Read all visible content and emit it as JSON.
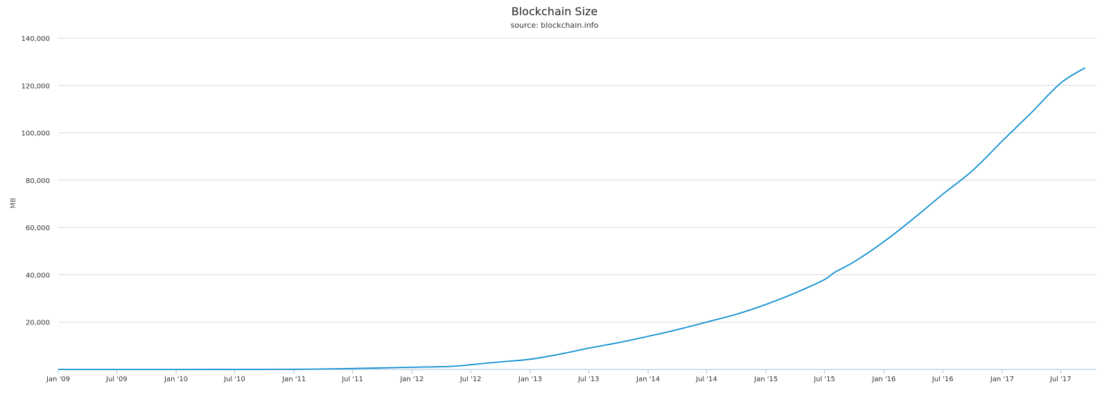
{
  "chart_data": {
    "type": "line",
    "title": "Blockchain Size",
    "subtitle": "source: blockchain.info",
    "ylabel": "MB",
    "xlabel": "",
    "ylim": [
      0,
      140000
    ],
    "y_ticks": [
      {
        "value": 20000,
        "label": "20,000"
      },
      {
        "value": 40000,
        "label": "40,000"
      },
      {
        "value": 60000,
        "label": "60,000"
      },
      {
        "value": 80000,
        "label": "80,000"
      },
      {
        "value": 100000,
        "label": "100,000"
      },
      {
        "value": 120000,
        "label": "120,000"
      },
      {
        "value": 140000,
        "label": "140,000"
      }
    ],
    "xlim": [
      "2009-01-01",
      "2017-10-20"
    ],
    "x_ticks": [
      {
        "date": "2009-01-01",
        "label": "Jan '09"
      },
      {
        "date": "2009-07-01",
        "label": "Jul '09"
      },
      {
        "date": "2010-01-01",
        "label": "Jan '10"
      },
      {
        "date": "2010-07-01",
        "label": "Jul '10"
      },
      {
        "date": "2011-01-01",
        "label": "Jan '11"
      },
      {
        "date": "2011-07-01",
        "label": "Jul '11"
      },
      {
        "date": "2012-01-01",
        "label": "Jan '12"
      },
      {
        "date": "2012-07-01",
        "label": "Jul '12"
      },
      {
        "date": "2013-01-01",
        "label": "Jan '13"
      },
      {
        "date": "2013-07-01",
        "label": "Jul '13"
      },
      {
        "date": "2014-01-01",
        "label": "Jan '14"
      },
      {
        "date": "2014-07-01",
        "label": "Jul '14"
      },
      {
        "date": "2015-01-01",
        "label": "Jan '15"
      },
      {
        "date": "2015-07-01",
        "label": "Jul '15"
      },
      {
        "date": "2016-01-01",
        "label": "Jan '16"
      },
      {
        "date": "2016-07-01",
        "label": "Jul '16"
      },
      {
        "date": "2017-01-01",
        "label": "Jan '17"
      },
      {
        "date": "2017-07-01",
        "label": "Jul '17"
      }
    ],
    "grid": true,
    "legend": "none",
    "colors": {
      "line": "#0f8fd0",
      "grid": "#d8d8d8",
      "axis": "#a9c1d9"
    },
    "series": [
      {
        "x": [
          "2009-01-01",
          "2010-01-01",
          "2011-01-01",
          "2011-07-01",
          "2012-01-01",
          "2012-05-01",
          "2012-07-01",
          "2012-10-01",
          "2013-01-01",
          "2013-04-01",
          "2013-07-01",
          "2013-10-01",
          "2014-01-01",
          "2014-04-01",
          "2014-07-01",
          "2014-10-01",
          "2015-01-01",
          "2015-04-01",
          "2015-07-01",
          "2015-08-01",
          "2015-10-01",
          "2016-01-01",
          "2016-04-01",
          "2016-07-01",
          "2016-10-01",
          "2017-01-01",
          "2017-04-01",
          "2017-07-01",
          "2017-09-15"
        ],
        "values": [
          0,
          5,
          60,
          400,
          900,
          1300,
          2000,
          3200,
          4300,
          6400,
          9000,
          11300,
          14000,
          16800,
          20000,
          23300,
          27500,
          32300,
          38000,
          41000,
          45500,
          54000,
          63700,
          74000,
          84000,
          96500,
          108500,
          121000,
          127500
        ]
      }
    ]
  }
}
